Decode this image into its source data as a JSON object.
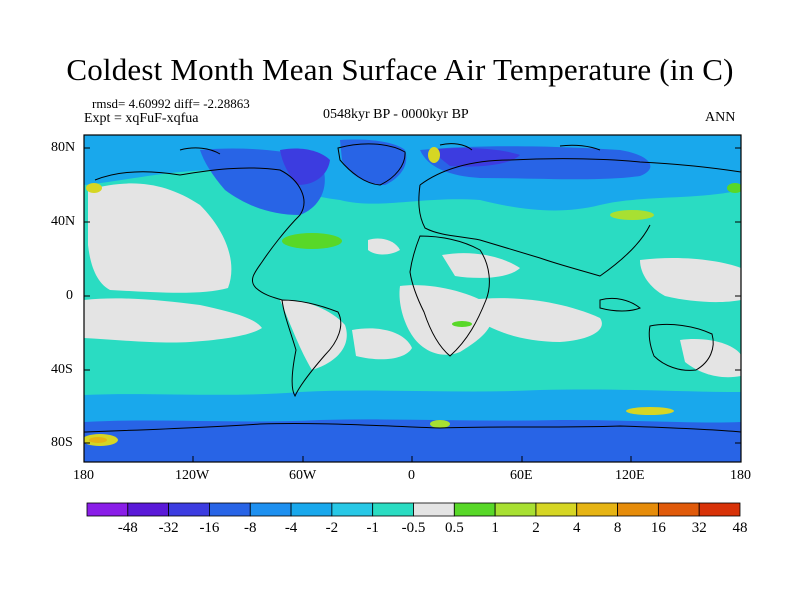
{
  "title": "Coldest Month Mean Surface Air Temperature (in C)",
  "stats": "rmsd= 4.60992 diff= -2.28863",
  "experiment": "Expt = xqFuF-xqfua",
  "period": "0548kyr BP - 0000kyr BP",
  "season": "ANN",
  "lat_labels": [
    "80N",
    "40N",
    "0",
    "40S",
    "80S"
  ],
  "lon_labels": [
    "180",
    "120W",
    "60W",
    "0",
    "60E",
    "120E",
    "180"
  ],
  "colorbar": {
    "labels": [
      "-48",
      "-32",
      "-16",
      "-8",
      "-4",
      "-2",
      "-1",
      "-0.5",
      "0.5",
      "1",
      "2",
      "4",
      "8",
      "16",
      "32",
      "48"
    ],
    "colors": [
      "#8a1ee8",
      "#5a19d8",
      "#3c3ce0",
      "#2864e6",
      "#1e90f0",
      "#19a8ec",
      "#28c8e6",
      "#2adcc2",
      "#e4e4e4",
      "#58d828",
      "#a8e032",
      "#d6d624",
      "#e6b414",
      "#e68c0a",
      "#e05a0a",
      "#d83208"
    ]
  },
  "colors": {
    "land_outline": "#000000",
    "neutral": "#e4e4e4",
    "teal": "#2adcc2",
    "cyan": "#28c8e6",
    "lightblue": "#19a8ec",
    "blue": "#2864e6",
    "darkblue": "#3c3ce0"
  }
}
